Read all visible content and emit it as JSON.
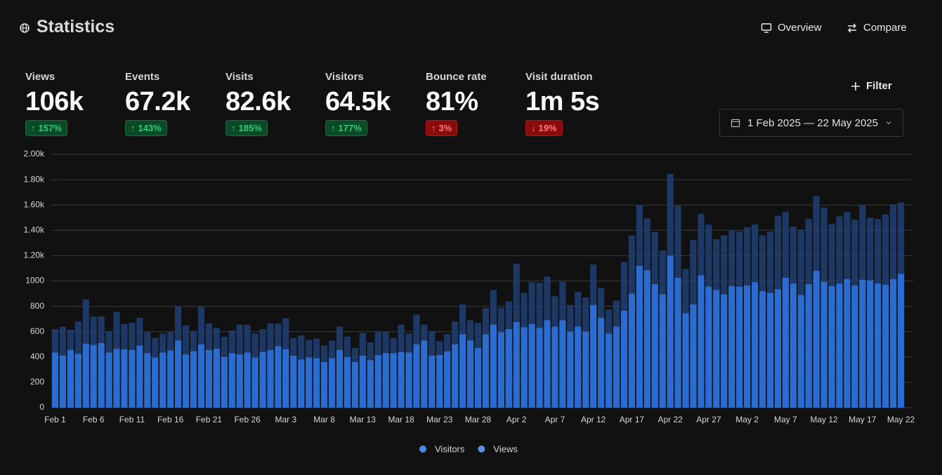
{
  "header": {
    "title": "Statistics",
    "overview": "Overview",
    "compare": "Compare"
  },
  "metrics": [
    {
      "label": "Views",
      "value": "106k",
      "change": "157%"
    },
    {
      "label": "Events",
      "value": "67.2k",
      "change": "143%"
    },
    {
      "label": "Visits",
      "value": "82.6k",
      "change": "185%"
    },
    {
      "label": "Visitors",
      "value": "64.5k",
      "change": "177%"
    },
    {
      "label": "Bounce rate",
      "value": "81%",
      "change": "3%"
    },
    {
      "label": "Visit duration",
      "value": "1m 5s",
      "change": "19%"
    }
  ],
  "filter": "Filter",
  "date_range": "1 Feb 2025 — 22 May 2025",
  "chart_data": {
    "type": "bar",
    "categories": [
      "Feb 1",
      null,
      null,
      null,
      null,
      "Feb 6",
      null,
      null,
      null,
      null,
      "Feb 11",
      null,
      null,
      null,
      null,
      "Feb 16",
      null,
      null,
      null,
      null,
      "Feb 21",
      null,
      null,
      null,
      null,
      "Feb 26",
      null,
      null,
      null,
      null,
      "Mar 3",
      null,
      null,
      null,
      null,
      "Mar 8",
      null,
      null,
      null,
      null,
      "Mar 13",
      null,
      null,
      null,
      null,
      "Mar 18",
      null,
      null,
      null,
      null,
      "Mar 23",
      null,
      null,
      null,
      null,
      "Mar 28",
      null,
      null,
      null,
      null,
      "Apr 2",
      null,
      null,
      null,
      null,
      "Apr 7",
      null,
      null,
      null,
      null,
      "Apr 12",
      null,
      null,
      null,
      null,
      "Apr 17",
      null,
      null,
      null,
      null,
      "Apr 22",
      null,
      null,
      null,
      null,
      "Apr 27",
      null,
      null,
      null,
      null,
      "May 2",
      null,
      null,
      null,
      null,
      "May 7",
      null,
      null,
      null,
      null,
      "May 12",
      null,
      null,
      null,
      null,
      "May 17",
      null,
      null,
      null,
      null,
      "May 22"
    ],
    "series": [
      {
        "name": "Visitors",
        "color": "#2b6fd6",
        "values": [
          435,
          410,
          455,
          425,
          505,
          495,
          510,
          435,
          465,
          460,
          455,
          490,
          430,
          395,
          435,
          450,
          530,
          420,
          445,
          500,
          455,
          465,
          400,
          430,
          420,
          435,
          395,
          440,
          455,
          485,
          460,
          410,
          380,
          395,
          390,
          360,
          390,
          455,
          400,
          360,
          410,
          375,
          415,
          430,
          430,
          440,
          435,
          500,
          530,
          410,
          415,
          445,
          500,
          580,
          530,
          470,
          580,
          655,
          595,
          620,
          675,
          635,
          660,
          630,
          690,
          640,
          690,
          600,
          640,
          600,
          810,
          710,
          585,
          640,
          765,
          900,
          1120,
          1085,
          975,
          895,
          1200,
          1025,
          745,
          815,
          1045,
          955,
          930,
          895,
          960,
          955,
          965,
          990,
          920,
          905,
          935,
          1025,
          980,
          890,
          975,
          1080,
          995,
          960,
          980,
          1015,
          965,
          1010,
          1005,
          980,
          970,
          1015,
          1055
        ]
      },
      {
        "name": "Views",
        "color": "#1f3d6e",
        "values": [
          620,
          640,
          615,
          680,
          855,
          720,
          720,
          605,
          755,
          660,
          670,
          710,
          595,
          550,
          585,
          600,
          800,
          650,
          605,
          795,
          665,
          630,
          560,
          610,
          655,
          655,
          585,
          620,
          665,
          665,
          705,
          550,
          570,
          535,
          545,
          490,
          530,
          640,
          560,
          470,
          590,
          515,
          600,
          600,
          550,
          655,
          585,
          735,
          655,
          605,
          525,
          580,
          680,
          815,
          690,
          670,
          785,
          930,
          790,
          840,
          1135,
          905,
          990,
          985,
          1035,
          880,
          995,
          810,
          915,
          870,
          1130,
          945,
          775,
          845,
          1150,
          1360,
          1600,
          1495,
          1385,
          1240,
          1845,
          1595,
          1095,
          1325,
          1530,
          1445,
          1330,
          1360,
          1400,
          1390,
          1425,
          1445,
          1360,
          1390,
          1515,
          1545,
          1430,
          1405,
          1490,
          1670,
          1580,
          1450,
          1510,
          1545,
          1485,
          1600,
          1500,
          1490,
          1525,
          1605,
          1620
        ]
      }
    ],
    "ylim": [
      0,
      2000
    ],
    "yticks": [
      0,
      200,
      400,
      600,
      800,
      1000,
      {
        "value": 1200,
        "label": "1.20k"
      },
      {
        "value": 1400,
        "label": "1.40k"
      },
      {
        "value": 1600,
        "label": "1.60k"
      },
      {
        "value": 1800,
        "label": "1.80k"
      },
      {
        "value": 2000,
        "label": "2.00k"
      }
    ],
    "grid": true
  }
}
